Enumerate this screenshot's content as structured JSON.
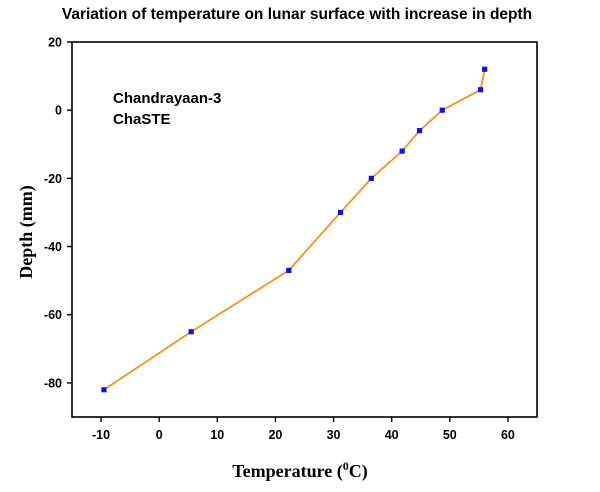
{
  "chart_data": {
    "type": "line",
    "title": "Variation of temperature on lunar surface with increase in depth",
    "xlabel_main": "Temperature (",
    "xlabel_sup": "0",
    "xlabel_end": "C)",
    "ylabel": "Depth (mm)",
    "xlim": [
      -15,
      65
    ],
    "ylim": [
      -90,
      20
    ],
    "xticks": [
      -10,
      0,
      10,
      20,
      30,
      40,
      50,
      60
    ],
    "yticks": [
      20,
      0,
      -20,
      -40,
      -60,
      -80
    ],
    "grid": false,
    "line_color": "#f5921e",
    "marker_color": "#1010e8",
    "annotations": [
      "Chandrayaan-3",
      "ChaSTE"
    ],
    "series": [
      {
        "x": [
          -9.5,
          5.5,
          22.3,
          31.2,
          36.5,
          41.8,
          44.8,
          48.7,
          55.3,
          56.0
        ],
        "y": [
          -82,
          -65,
          -47,
          -30,
          -20,
          -12,
          -6,
          0,
          6,
          12
        ]
      }
    ]
  }
}
